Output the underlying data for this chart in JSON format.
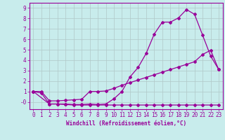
{
  "xlabel": "Windchill (Refroidissement éolien,°C)",
  "background_color": "#c8ecec",
  "line_color": "#990099",
  "grid_color": "#b0c8c8",
  "xlim": [
    -0.5,
    23.5
  ],
  "ylim": [
    -0.7,
    9.5
  ],
  "xticks": [
    0,
    1,
    2,
    3,
    4,
    5,
    6,
    7,
    8,
    9,
    10,
    11,
    12,
    13,
    14,
    15,
    16,
    17,
    18,
    19,
    20,
    21,
    22,
    23
  ],
  "yticks": [
    0,
    1,
    2,
    3,
    4,
    5,
    6,
    7,
    8,
    9
  ],
  "ytick_labels": [
    "-0",
    "1",
    "2",
    "3",
    "4",
    "5",
    "6",
    "7",
    "8",
    "9"
  ],
  "line1_x": [
    0,
    1,
    2,
    3,
    4,
    5,
    6,
    7,
    8,
    9,
    10,
    11,
    12,
    13,
    14,
    15,
    16,
    17,
    18,
    19,
    20,
    21,
    22,
    23
  ],
  "line1_y": [
    1.0,
    0.85,
    -0.2,
    -0.2,
    -0.25,
    -0.3,
    -0.3,
    -0.3,
    -0.3,
    -0.3,
    -0.3,
    -0.3,
    -0.3,
    -0.3,
    -0.3,
    -0.3,
    -0.3,
    -0.3,
    -0.3,
    -0.3,
    -0.3,
    -0.3,
    -0.3,
    -0.3
  ],
  "line2_x": [
    0,
    1,
    2,
    3,
    4,
    5,
    6,
    7,
    8,
    9,
    10,
    11,
    12,
    13,
    14,
    15,
    16,
    17,
    18,
    19,
    20,
    21,
    22,
    23
  ],
  "line2_y": [
    1.0,
    1.0,
    0.1,
    0.1,
    0.15,
    0.2,
    0.25,
    1.0,
    1.0,
    1.05,
    1.3,
    1.6,
    1.85,
    2.1,
    2.35,
    2.6,
    2.85,
    3.1,
    3.35,
    3.6,
    3.85,
    4.55,
    4.95,
    3.1
  ],
  "line3_x": [
    0,
    2,
    3,
    4,
    5,
    6,
    7,
    8,
    9,
    10,
    11,
    12,
    13,
    14,
    15,
    16,
    17,
    18,
    19,
    20,
    21,
    22,
    23
  ],
  "line3_y": [
    1.0,
    -0.2,
    -0.2,
    -0.2,
    -0.25,
    -0.25,
    -0.2,
    -0.25,
    -0.2,
    0.3,
    1.0,
    2.4,
    3.3,
    4.65,
    6.5,
    7.65,
    7.65,
    8.05,
    8.85,
    8.4,
    6.4,
    4.4,
    3.1
  ],
  "marker": "D",
  "markersize": 2,
  "linewidth": 0.9,
  "tick_fontsize": 5.5,
  "xlabel_fontsize": 5.5,
  "font_family": "monospace"
}
